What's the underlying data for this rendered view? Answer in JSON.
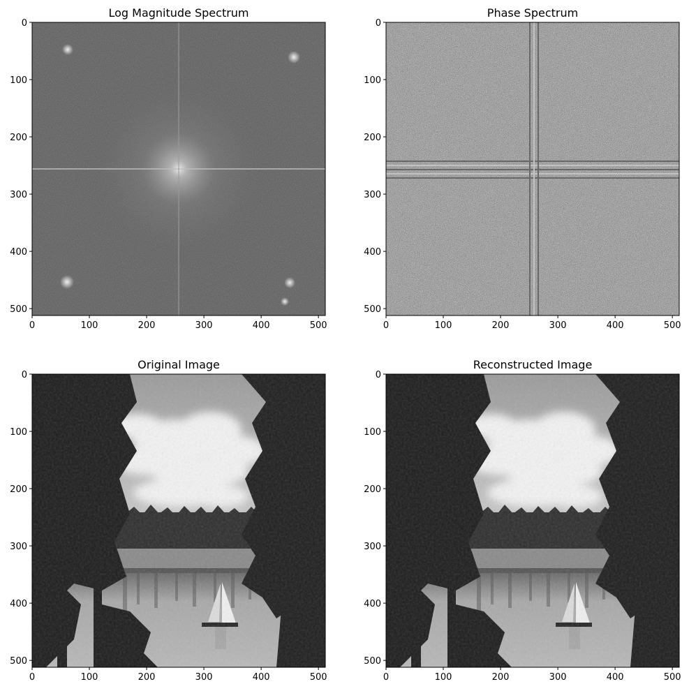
{
  "chart_data": [
    {
      "type": "heatmap",
      "title": "Log Magnitude Spectrum",
      "image_content": "centered log-magnitude Fourier spectrum: bright central peak with horizontal and vertical streak lines and symmetric bright spots near the corners",
      "colormap": "gray",
      "x_range": [
        0,
        512
      ],
      "y_range": [
        512,
        0
      ],
      "x_ticks": [
        0,
        100,
        200,
        300,
        400,
        500
      ],
      "y_ticks": [
        0,
        100,
        200,
        300,
        400,
        500
      ],
      "x_tick_labels": [
        "0",
        "100",
        "200",
        "300",
        "400",
        "500"
      ],
      "y_tick_labels": [
        "0",
        "100",
        "200",
        "300",
        "400",
        "500"
      ],
      "features": {
        "center": [
          256,
          256
        ],
        "peak_spots": [
          [
            62,
            68
          ],
          [
            452,
            68
          ],
          [
            60,
            448
          ],
          [
            450,
            440
          ]
        ],
        "horizontal_line_y": 256,
        "vertical_line_x": 256
      }
    },
    {
      "type": "heatmap",
      "title": "Phase Spectrum",
      "image_content": "phase spectrum: dense black-and-white noise texture with faint horizontal and vertical banding through the center",
      "colormap": "gray",
      "x_range": [
        0,
        512
      ],
      "y_range": [
        512,
        0
      ],
      "x_ticks": [
        0,
        100,
        200,
        300,
        400,
        500
      ],
      "y_ticks": [
        0,
        100,
        200,
        300,
        400,
        500
      ],
      "x_tick_labels": [
        "0",
        "100",
        "200",
        "300",
        "400",
        "500"
      ],
      "y_tick_labels": [
        "0",
        "100",
        "200",
        "300",
        "400",
        "500"
      ],
      "features": {
        "band_row_y": 256,
        "band_col_x": 256
      }
    },
    {
      "type": "heatmap",
      "title": "Original Image",
      "image_content": "grayscale photo of a lake with tall pine trees at left and right, cloudy sky, distant tree line, and a white sailboat on the water",
      "colormap": "gray",
      "x_range": [
        0,
        512
      ],
      "y_range": [
        512,
        0
      ],
      "x_ticks": [
        0,
        100,
        200,
        300,
        400,
        500
      ],
      "y_ticks": [
        0,
        100,
        200,
        300,
        400,
        500
      ],
      "x_tick_labels": [
        "0",
        "100",
        "200",
        "300",
        "400",
        "500"
      ],
      "y_tick_labels": [
        "0",
        "100",
        "200",
        "300",
        "400",
        "500"
      ]
    },
    {
      "type": "heatmap",
      "title": "Reconstructed Image",
      "image_content": "reconstruction of the same lake scene: pine trees, clouds, tree line, sailboat",
      "colormap": "gray",
      "x_range": [
        0,
        512
      ],
      "y_range": [
        512,
        0
      ],
      "x_ticks": [
        0,
        100,
        200,
        300,
        400,
        500
      ],
      "y_ticks": [
        0,
        100,
        200,
        300,
        400,
        500
      ],
      "x_tick_labels": [
        "0",
        "100",
        "200",
        "300",
        "400",
        "500"
      ],
      "y_tick_labels": [
        "0",
        "100",
        "200",
        "300",
        "400",
        "500"
      ]
    }
  ]
}
